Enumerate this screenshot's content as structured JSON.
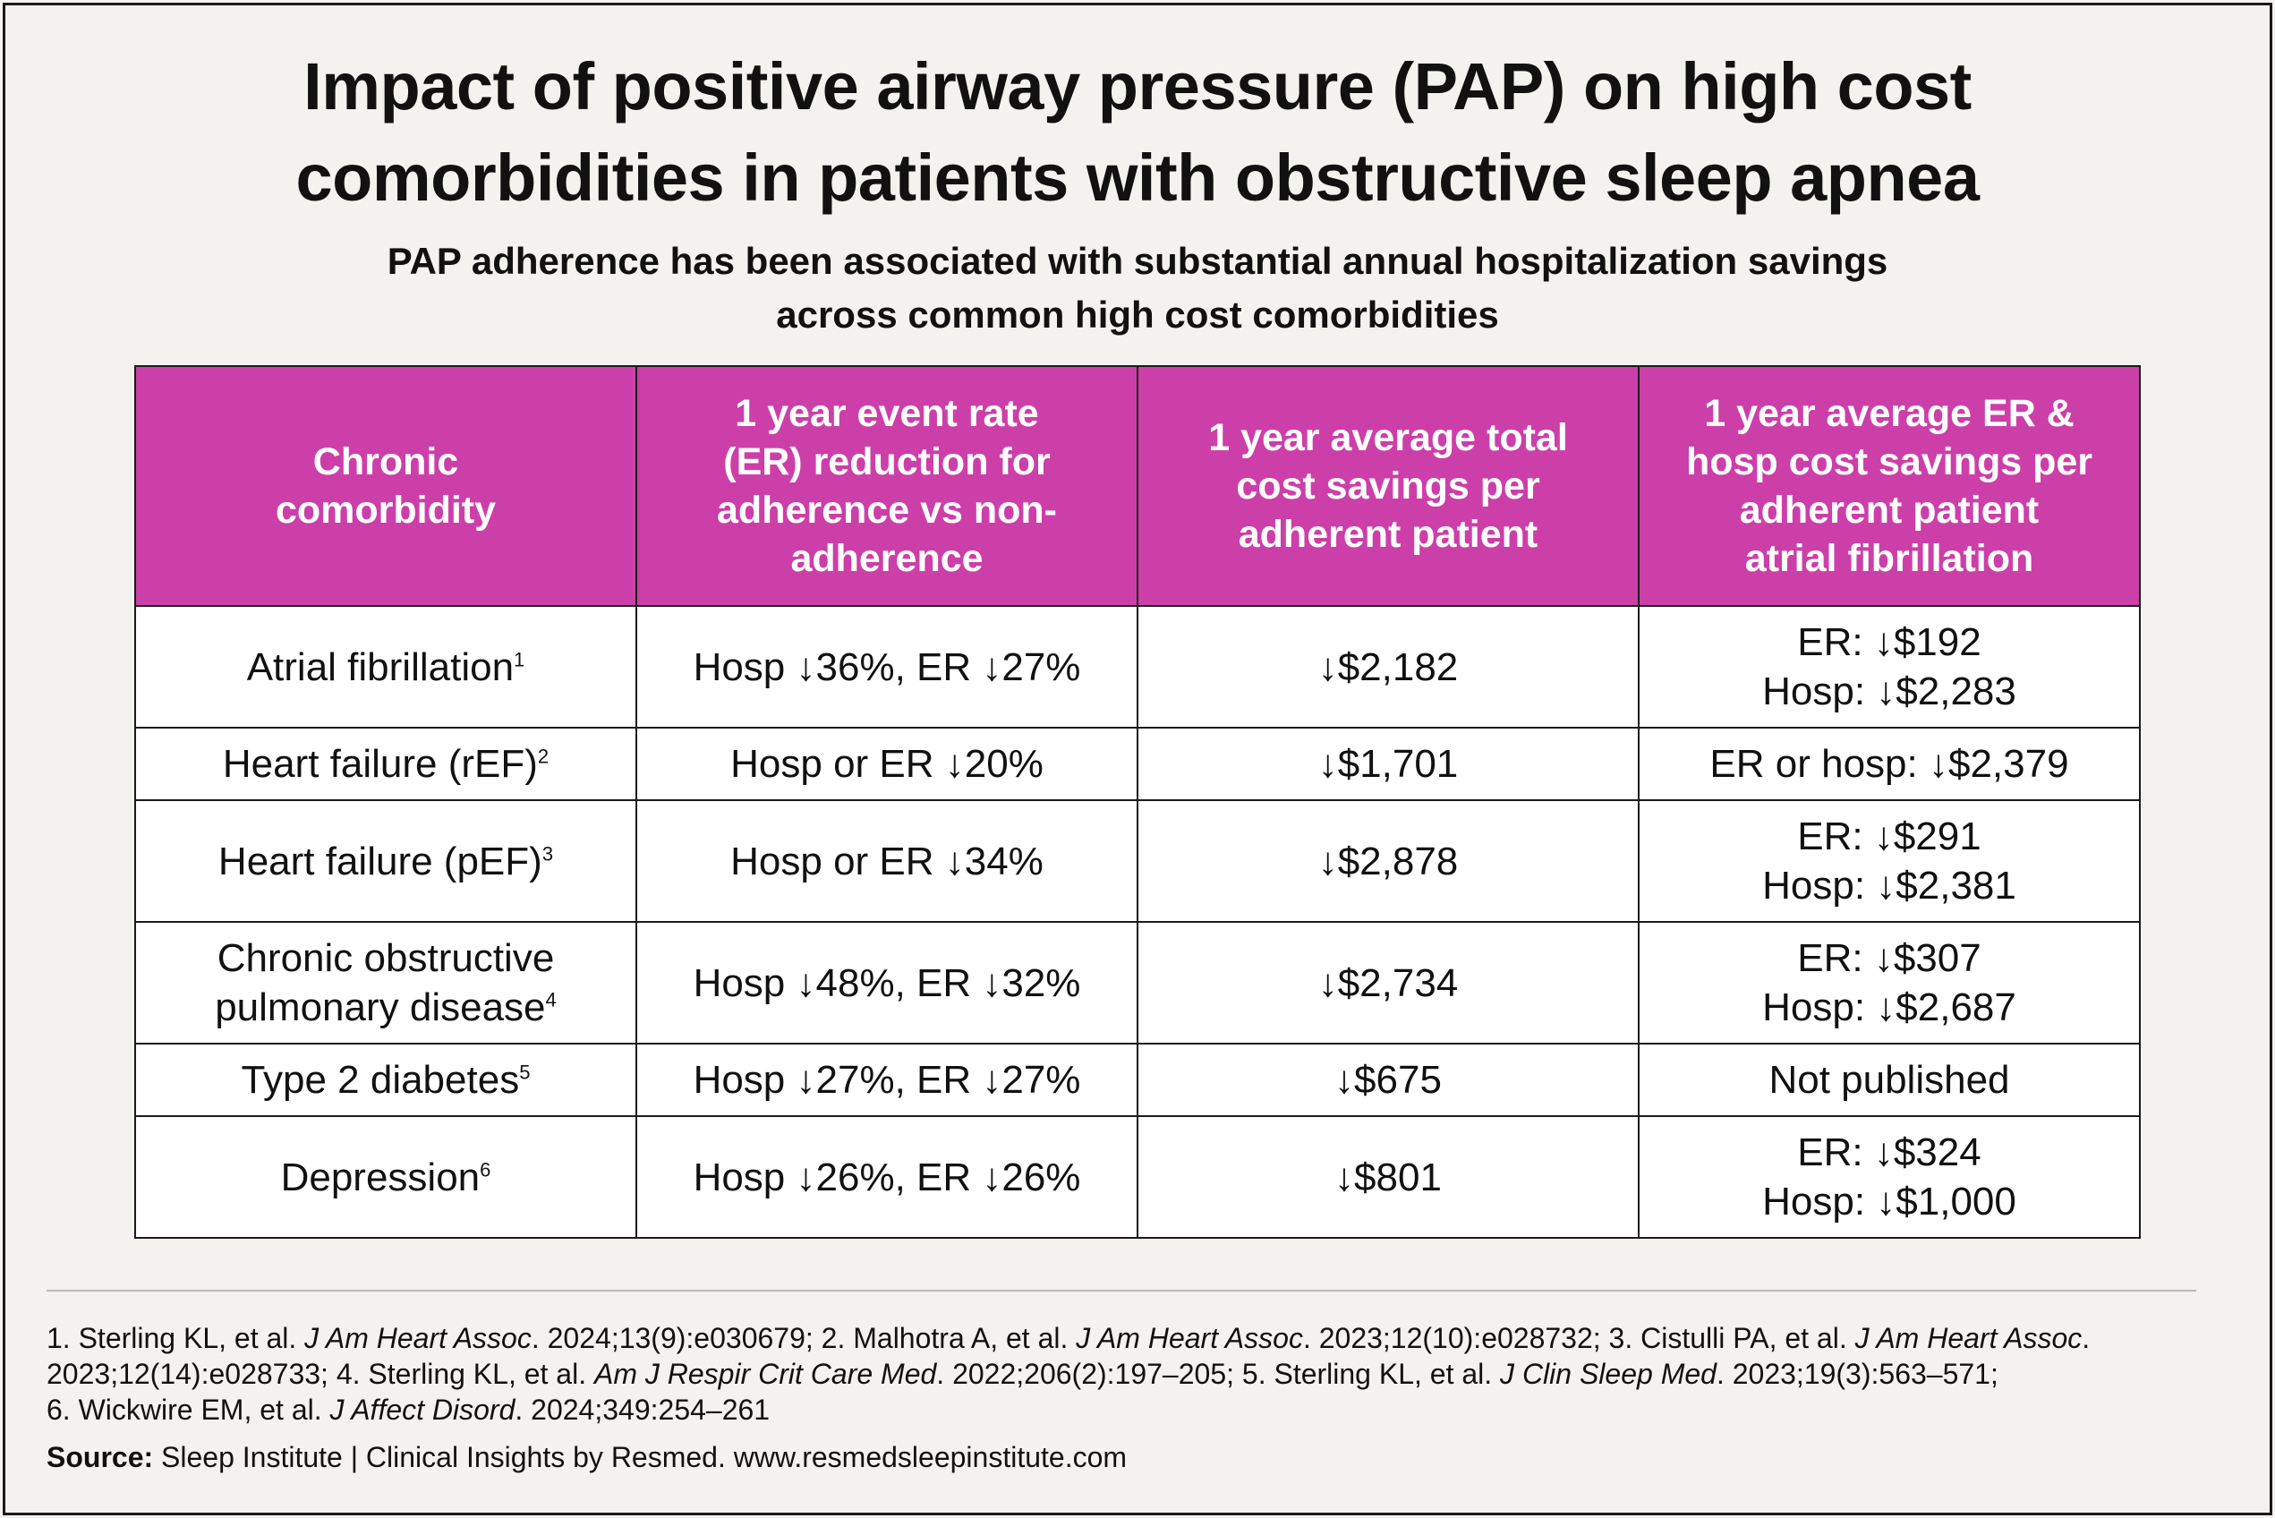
{
  "title": {
    "line1": "Impact of positive airway pressure (PAP) on high cost",
    "line2": "comorbidities in patients with obstructive sleep apnea"
  },
  "subtitle": {
    "line1": "PAP adherence has been associated with substantial annual hospitalization savings",
    "line2": "across common high cost comorbidities"
  },
  "table": {
    "headers": [
      [
        "Chronic",
        "comorbidity"
      ],
      [
        "1 year event rate",
        "(ER) reduction for",
        "adherence vs non-",
        "adherence"
      ],
      [
        "1 year average total",
        "cost savings per",
        "adherent patient"
      ],
      [
        "1 year average ER &",
        "hosp cost savings per",
        "adherent patient",
        "atrial fibrillation"
      ]
    ],
    "rows": [
      {
        "condition": "Atrial fibrillation",
        "ref": "1",
        "reduction": "Hosp ↓36%, ER ↓27%",
        "total": "↓$2,182",
        "er_hosp": [
          "ER: ↓$192",
          "Hosp: ↓$2,283"
        ]
      },
      {
        "condition": "Heart failure (rEF)",
        "ref": "2",
        "reduction": "Hosp or ER ↓20%",
        "total": "↓$1,701",
        "er_hosp": [
          "ER or hosp: ↓$2,379"
        ]
      },
      {
        "condition": "Heart failure (pEF)",
        "ref": "3",
        "reduction": "Hosp or ER ↓34%",
        "total": "↓$2,878",
        "er_hosp": [
          "ER: ↓$291",
          "Hosp: ↓$2,381"
        ]
      },
      {
        "condition_lines": [
          "Chronic obstructive",
          "pulmonary disease"
        ],
        "ref": "4",
        "reduction": "Hosp ↓48%, ER ↓32%",
        "total": "↓$2,734",
        "er_hosp": [
          "ER: ↓$307",
          "Hosp: ↓$2,687"
        ]
      },
      {
        "condition": "Type 2 diabetes",
        "ref": "5",
        "reduction": "Hosp ↓27%, ER ↓27%",
        "total": "↓$675",
        "er_hosp": [
          "Not published"
        ]
      },
      {
        "condition": "Depression",
        "ref": "6",
        "reduction": "Hosp ↓26%, ER ↓26%",
        "total": "↓$801",
        "er_hosp": [
          "ER: ↓$324",
          "Hosp: ↓$1,000"
        ]
      }
    ]
  },
  "references": {
    "r1_pre": "1. Sterling KL, et al. ",
    "r1_journal": "J Am Heart Assoc",
    "r1_post": ". 2024;13(9):e030679; 2. Malhotra A, et al. ",
    "r2_journal": "J Am Heart Assoc",
    "r2_post": ". 2023;12(10):e028732; 3. Cistulli PA, et al. ",
    "r3_journal": "J Am Heart Assoc",
    "r3_post": ".",
    "r3_detail": "2023;12(14):e028733; 4. Sterling KL, et al. ",
    "r4_journal": "Am J Respir Crit Care Med",
    "r4_post": ". 2022;206(2):197–205; 5. Sterling KL, et al. ",
    "r5_journal": "J Clin Sleep Med",
    "r5_post": ". 2023;19(3):563–571;",
    "r6_pre": "6. Wickwire EM, et al. ",
    "r6_journal": "J Affect Disord",
    "r6_post": ". 2024;349:254–261"
  },
  "source": {
    "label": "Source:",
    "text": " Sleep Institute | Clinical Insights by Resmed. www.resmedsleepinstitute.com"
  }
}
